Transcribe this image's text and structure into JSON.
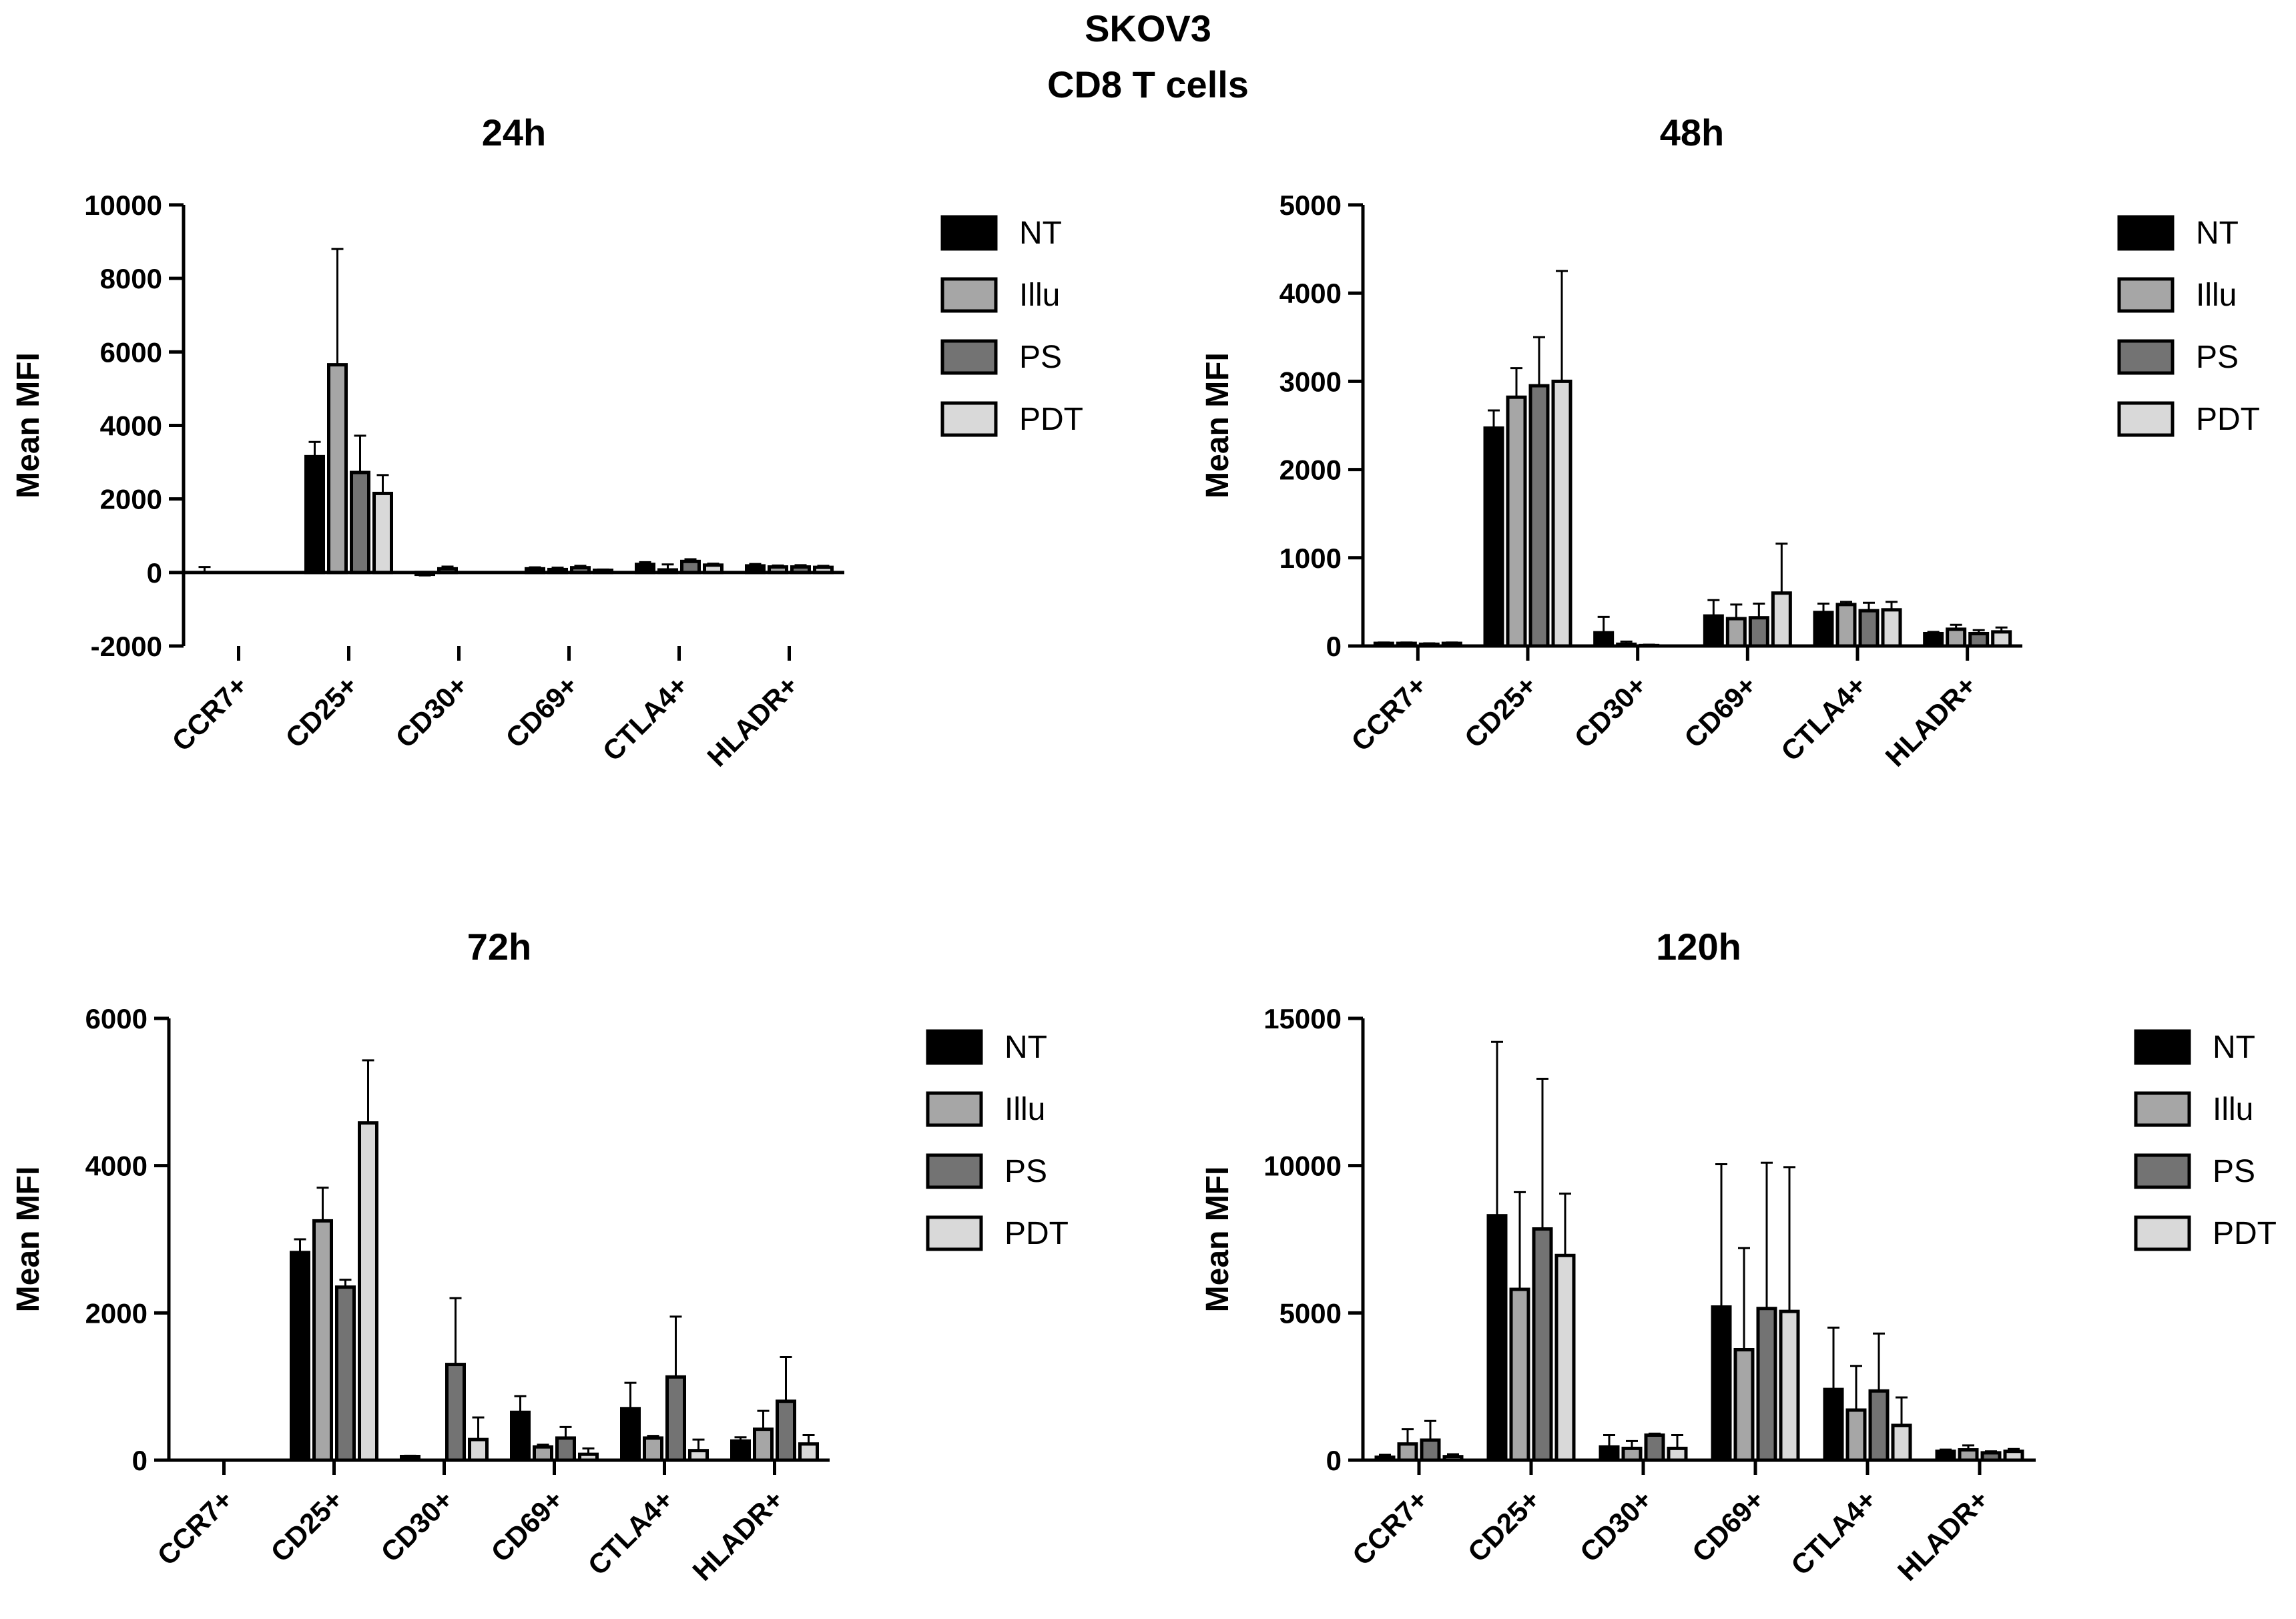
{
  "figure": {
    "title_line1": "SKOV3",
    "title_line2": "CD8 T cells"
  },
  "colors": {
    "NT": "#000000",
    "Illu": "#a6a6a6",
    "PS": "#737373",
    "PDT": "#d9d9d9"
  },
  "chart_data": [
    {
      "type": "bar",
      "title": "24h",
      "ylabel": "Mean MFI",
      "xlabel": "",
      "ylim": [
        -2000,
        10000
      ],
      "yticks": [
        -2000,
        0,
        2000,
        4000,
        6000,
        8000,
        10000
      ],
      "yticklabels": [
        "-2000",
        "0",
        "2000",
        "4000",
        "6000",
        "8000",
        "10000"
      ],
      "categories": [
        "CCR7+",
        "CD25+",
        "CD30+",
        "CD69+",
        "CTLA4+",
        "HLADR+"
      ],
      "series": [
        {
          "name": "NT",
          "values": [
            0,
            3150,
            -50,
            100,
            220,
            180
          ],
          "errors": [
            150,
            400,
            30,
            40,
            60,
            50
          ]
        },
        {
          "name": "Illu",
          "values": [
            0,
            5650,
            100,
            80,
            70,
            150
          ],
          "errors": [
            0,
            3150,
            60,
            50,
            150,
            40
          ]
        },
        {
          "name": "PS",
          "values": [
            0,
            2720,
            0,
            130,
            300,
            150
          ],
          "errors": [
            0,
            1000,
            0,
            50,
            60,
            50
          ]
        },
        {
          "name": "PDT",
          "values": [
            0,
            2150,
            0,
            60,
            200,
            140
          ],
          "errors": [
            0,
            500,
            0,
            20,
            40,
            40
          ]
        }
      ]
    },
    {
      "type": "bar",
      "title": "48h",
      "ylabel": "Mean MFI",
      "xlabel": "",
      "ylim": [
        0,
        5000
      ],
      "yticks": [
        0,
        1000,
        2000,
        3000,
        4000,
        5000
      ],
      "yticklabels": [
        "0",
        "1000",
        "2000",
        "3000",
        "4000",
        "5000"
      ],
      "categories": [
        "CCR7+",
        "CD25+",
        "CD30+",
        "CD69+",
        "CTLA4+",
        "HLADR+"
      ],
      "series": [
        {
          "name": "NT",
          "values": [
            30,
            2470,
            150,
            340,
            380,
            140
          ],
          "errors": [
            10,
            200,
            180,
            180,
            100,
            20
          ]
        },
        {
          "name": "Illu",
          "values": [
            30,
            2820,
            20,
            310,
            470,
            190
          ],
          "errors": [
            10,
            330,
            30,
            160,
            30,
            50
          ]
        },
        {
          "name": "PS",
          "values": [
            20,
            2950,
            5,
            320,
            400,
            140
          ],
          "errors": [
            10,
            550,
            10,
            160,
            90,
            40
          ]
        },
        {
          "name": "PDT",
          "values": [
            30,
            3000,
            0,
            600,
            410,
            160
          ],
          "errors": [
            10,
            1250,
            0,
            560,
            90,
            50
          ]
        }
      ]
    },
    {
      "type": "bar",
      "title": "72h",
      "ylabel": "Mean MFI",
      "xlabel": "",
      "ylim": [
        0,
        6000
      ],
      "yticks": [
        0,
        2000,
        4000,
        6000
      ],
      "yticklabels": [
        "0",
        "2000",
        "4000",
        "6000"
      ],
      "categories": [
        "CCR7+",
        "CD25+",
        "CD30+",
        "CD69+",
        "CTLA4+",
        "HLADR+"
      ],
      "series": [
        {
          "name": "NT",
          "values": [
            0,
            2820,
            50,
            650,
            700,
            260
          ],
          "errors": [
            0,
            180,
            10,
            220,
            350,
            50
          ]
        },
        {
          "name": "Illu",
          "values": [
            0,
            3250,
            0,
            180,
            300,
            420
          ],
          "errors": [
            0,
            450,
            0,
            30,
            30,
            250
          ]
        },
        {
          "name": "PS",
          "values": [
            0,
            2350,
            1300,
            300,
            1130,
            800
          ],
          "errors": [
            0,
            100,
            900,
            150,
            820,
            600
          ]
        },
        {
          "name": "PDT",
          "values": [
            0,
            4580,
            280,
            80,
            130,
            220
          ],
          "errors": [
            0,
            850,
            300,
            80,
            150,
            120
          ]
        }
      ]
    },
    {
      "type": "bar",
      "title": "120h",
      "ylabel": "Mean MFI",
      "xlabel": "",
      "ylim": [
        0,
        15000
      ],
      "yticks": [
        0,
        5000,
        10000,
        15000
      ],
      "yticklabels": [
        "0",
        "5000",
        "10000",
        "15000"
      ],
      "categories": [
        "CCR7+",
        "CD25+",
        "CD30+",
        "CD69+",
        "CTLA4+",
        "HLADR+"
      ],
      "series": [
        {
          "name": "NT",
          "values": [
            100,
            8300,
            450,
            5200,
            2400,
            300
          ],
          "errors": [
            80,
            5900,
            400,
            4850,
            2100,
            60
          ]
        },
        {
          "name": "Illu",
          "values": [
            550,
            5800,
            400,
            3750,
            1700,
            350
          ],
          "errors": [
            500,
            3300,
            250,
            3450,
            1500,
            150
          ]
        },
        {
          "name": "PS",
          "values": [
            680,
            7850,
            850,
            5150,
            2350,
            250
          ],
          "errors": [
            650,
            5100,
            50,
            4950,
            1950,
            50
          ]
        },
        {
          "name": "PDT",
          "values": [
            120,
            6950,
            400,
            5050,
            1180,
            300
          ],
          "errors": [
            80,
            2100,
            450,
            4900,
            950,
            80
          ]
        }
      ]
    }
  ]
}
